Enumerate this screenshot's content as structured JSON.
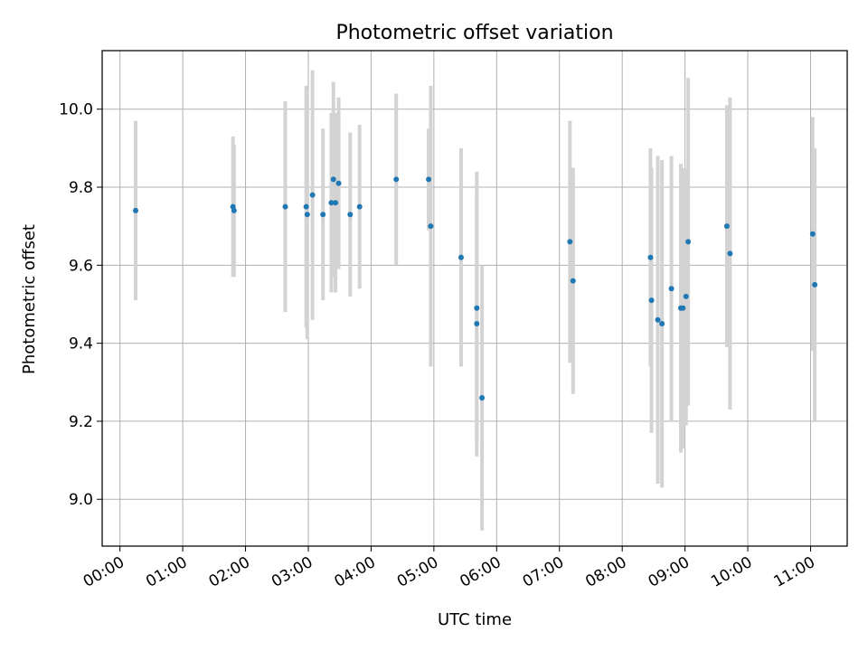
{
  "chart_data": {
    "type": "scatter",
    "title": "Photometric offset variation",
    "xlabel": "UTC time",
    "ylabel": "Photometric offset",
    "x_ticks": [
      "00:00",
      "01:00",
      "02:00",
      "03:00",
      "04:00",
      "05:00",
      "06:00",
      "07:00",
      "08:00",
      "09:00",
      "10:00",
      "11:00"
    ],
    "y_ticks": [
      "9.0",
      "9.2",
      "9.4",
      "9.6",
      "9.8",
      "10.0"
    ],
    "xlim": [
      "-00:17",
      "11:35"
    ],
    "ylim": [
      8.88,
      10.15
    ],
    "grid": true,
    "marker_color": "#1f77b4",
    "errorbar_color": "#d3d3d3",
    "points": [
      {
        "t": "00:15",
        "y": 9.74,
        "err": 0.23
      },
      {
        "t": "01:48",
        "y": 9.75,
        "err": 0.18
      },
      {
        "t": "01:49",
        "y": 9.74,
        "err": 0.17
      },
      {
        "t": "02:38",
        "y": 9.75,
        "err": 0.27
      },
      {
        "t": "02:58",
        "y": 9.75,
        "err": 0.31
      },
      {
        "t": "02:59",
        "y": 9.73,
        "err": 0.32
      },
      {
        "t": "03:04",
        "y": 9.78,
        "err": 0.32
      },
      {
        "t": "03:14",
        "y": 9.73,
        "err": 0.22
      },
      {
        "t": "03:22",
        "y": 9.76,
        "err": 0.23
      },
      {
        "t": "03:24",
        "y": 9.82,
        "err": 0.25
      },
      {
        "t": "03:26",
        "y": 9.76,
        "err": 0.23
      },
      {
        "t": "03:29",
        "y": 9.81,
        "err": 0.22
      },
      {
        "t": "03:40",
        "y": 9.73,
        "err": 0.21
      },
      {
        "t": "03:49",
        "y": 9.75,
        "err": 0.21
      },
      {
        "t": "04:24",
        "y": 9.82,
        "err": 0.22
      },
      {
        "t": "04:55",
        "y": 9.82,
        "err": 0.13
      },
      {
        "t": "04:57",
        "y": 9.7,
        "err": 0.36
      },
      {
        "t": "05:26",
        "y": 9.62,
        "err": 0.28
      },
      {
        "t": "05:41",
        "y": 9.49,
        "err": 0.35
      },
      {
        "t": "05:41",
        "y": 9.45,
        "err": 0.34
      },
      {
        "t": "05:46",
        "y": 9.26,
        "err": 0.34
      },
      {
        "t": "07:10",
        "y": 9.66,
        "err": 0.31
      },
      {
        "t": "07:13",
        "y": 9.56,
        "err": 0.29
      },
      {
        "t": "08:27",
        "y": 9.62,
        "err": 0.28
      },
      {
        "t": "08:28",
        "y": 9.51,
        "err": 0.34
      },
      {
        "t": "08:34",
        "y": 9.46,
        "err": 0.42
      },
      {
        "t": "08:38",
        "y": 9.45,
        "err": 0.42
      },
      {
        "t": "08:47",
        "y": 9.54,
        "err": 0.34
      },
      {
        "t": "08:56",
        "y": 9.49,
        "err": 0.37
      },
      {
        "t": "08:58",
        "y": 9.49,
        "err": 0.36
      },
      {
        "t": "09:01",
        "y": 9.52,
        "err": 0.33
      },
      {
        "t": "09:03",
        "y": 9.66,
        "err": 0.42
      },
      {
        "t": "09:40",
        "y": 9.7,
        "err": 0.31
      },
      {
        "t": "09:43",
        "y": 9.63,
        "err": 0.4
      },
      {
        "t": "11:02",
        "y": 9.68,
        "err": 0.3
      },
      {
        "t": "11:04",
        "y": 9.55,
        "err": 0.35
      }
    ]
  }
}
